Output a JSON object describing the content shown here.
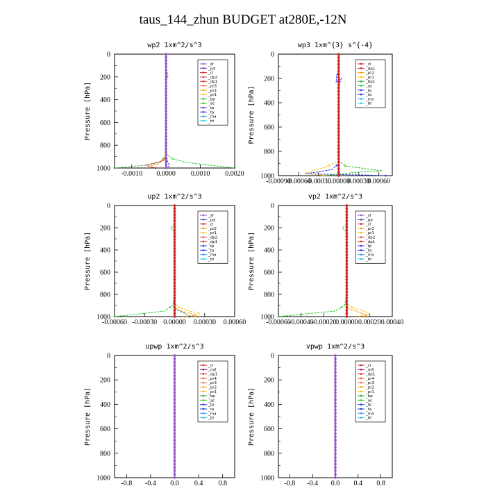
{
  "title": "taus_144_zhun  BUDGET at280E,-12N",
  "chart_data": [
    {
      "type": "line",
      "title": "wp2  1xm^2/s^3",
      "ylabel": "Pressure [hPa]",
      "ylim": [
        1000,
        0
      ],
      "yticks": [
        "0",
        "200",
        "400",
        "600",
        "800",
        "1000"
      ],
      "xlim": [
        -0.0015,
        0.002
      ],
      "xticks": [
        -0.001,
        0.0,
        0.001,
        0.002
      ],
      "xticklabels": [
        "-0.0010",
        "0.0000",
        "0.0010",
        "0.0020"
      ],
      "legend": [
        "_sf",
        "_pd",
        "_cl",
        "_dp2",
        "_dp1",
        "_pr3",
        "_pr2",
        "_pr1",
        "_bp",
        "_ac",
        "_tp",
        "_ta",
        "_ma",
        "_bt"
      ],
      "legend_position": "top-right",
      "series": [
        {
          "name": "_ac",
          "color": "#22cc22",
          "x": [
            0.0,
            0.0,
            6e-05,
            0.0,
            0.0,
            0.0,
            0.0,
            2e-05,
            0.0002,
            0.0006,
            0.0011,
            0.0016,
            0.002
          ],
          "y": [
            0,
            150,
            190,
            230,
            400,
            600,
            800,
            880,
            920,
            950,
            970,
            985,
            1000
          ]
        },
        {
          "name": "_bp",
          "color": "#33bb33",
          "x": [
            0.0,
            0.0,
            3e-05,
            0.0,
            0.0,
            -2e-05,
            -0.0002,
            -0.0006,
            -0.0011,
            -0.0015
          ],
          "y": [
            0,
            150,
            200,
            240,
            600,
            900,
            950,
            975,
            990,
            1000
          ]
        },
        {
          "name": "_pr1",
          "color": "#ff9900",
          "x": [
            0.0,
            0.0,
            -0.0002,
            -0.0005,
            -0.0003
          ],
          "y": [
            0,
            900,
            960,
            985,
            1000
          ]
        },
        {
          "name": "_dp1",
          "color": "#cc2222",
          "x": [
            0.0,
            0.0,
            0.0,
            -4e-05,
            -0.0003,
            -0.0006,
            -0.0003
          ],
          "y": [
            0,
            600,
            880,
            930,
            955,
            975,
            1000
          ]
        },
        {
          "name": "_tp",
          "color": "#3333ee",
          "x": [
            0.0,
            0.0,
            5e-05,
            0.0001,
            0.0
          ],
          "y": [
            0,
            900,
            950,
            980,
            1000
          ]
        },
        {
          "name": "_sf",
          "color": "#9955cc",
          "x": [
            0.0,
            0.0
          ],
          "y": [
            0,
            1000
          ]
        }
      ]
    },
    {
      "type": "line",
      "title": "wp3  1xm^{3} s^{-4}",
      "ylabel": "Pressure [hPa]",
      "ylim": [
        1000,
        0
      ],
      "yticks": [
        "0",
        "200",
        "400",
        "600",
        "800",
        "1000"
      ],
      "xlim": [
        -0.0009,
        0.0008
      ],
      "xticks": [
        -0.0009,
        -0.0006,
        -0.0003,
        0.0,
        0.0003,
        0.0006
      ],
      "xticklabels": [
        "-0.00090",
        "-0.00060",
        "-0.00030",
        "0.00000",
        "0.00030",
        "0.00060"
      ],
      "legend": [
        "_cl",
        "_dp1",
        "_pr2",
        "_pr1",
        "_bp1",
        "_ac",
        "_tp",
        "_ta",
        "_ma",
        "_bt"
      ],
      "legend_position": "top-right",
      "series": [
        {
          "name": "_ta",
          "color": "#2233dd",
          "x": [
            0.0,
            0.0,
            -3e-05,
            -4e-05,
            4e-05,
            0.0,
            0.0,
            -0.0001,
            -0.0005,
            0.0004,
            0.0007
          ],
          "y": [
            0,
            140,
            180,
            230,
            200,
            260,
            900,
            950,
            985,
            995,
            1000
          ]
        },
        {
          "name": "_ac",
          "color": "#22bb22",
          "x": [
            0.0,
            0.0,
            0.0001,
            0.0005,
            0.00065,
            0.0002,
            -0.0002
          ],
          "y": [
            0,
            880,
            920,
            950,
            960,
            975,
            1000
          ]
        },
        {
          "name": "_pr2",
          "color": "#ffbb00",
          "x": [
            0.0,
            0.0,
            -0.0002,
            -0.0004,
            -0.0005,
            -0.0002
          ],
          "y": [
            0,
            880,
            930,
            960,
            980,
            1000
          ]
        },
        {
          "name": "_dp1",
          "color": "#cc2222",
          "x": [
            0.0,
            0.0
          ],
          "y": [
            0,
            1000
          ]
        }
      ]
    },
    {
      "type": "line",
      "title": "up2  1xm^2/s^3",
      "ylabel": "Pressure [hPa]",
      "ylim": [
        1000,
        0
      ],
      "yticks": [
        "0",
        "200",
        "400",
        "600",
        "800",
        "1000"
      ],
      "xlim": [
        -0.0006,
        0.0006
      ],
      "xticks": [
        -0.0006,
        -0.0003,
        0.0,
        0.0003,
        0.0006
      ],
      "xticklabels": [
        "-0.00060",
        "-0.00030",
        "0.00000",
        "0.00030",
        "0.00060"
      ],
      "legend": [
        "_sf",
        "_pd",
        "_cl",
        "_pr2",
        "_pr1",
        "_dp2",
        "_dp1",
        "_tp",
        "_ta",
        "_ma",
        "_bt"
      ],
      "legend_position": "top-right",
      "series": [
        {
          "name": "_dp1",
          "color": "#22cc22",
          "x": [
            0.0,
            0.0,
            -4e-05,
            0.0,
            0.0,
            -2e-05,
            -0.0001,
            -0.0004,
            -0.0006
          ],
          "y": [
            0,
            170,
            200,
            240,
            820,
            900,
            950,
            980,
            1000
          ]
        },
        {
          "name": "_pr1",
          "color": "#ffbb00",
          "x": [
            0.0,
            0.0,
            5e-05,
            0.00015,
            0.00025,
            0.0002
          ],
          "y": [
            0,
            880,
            920,
            950,
            970,
            1000
          ]
        },
        {
          "name": "_pr2",
          "color": "#ff8800",
          "x": [
            0.0,
            0.0,
            0.0001,
            0.00022,
            0.0001
          ],
          "y": [
            0,
            920,
            960,
            985,
            1000
          ]
        },
        {
          "name": "_dp2",
          "color": "#008866",
          "x": [
            0.0,
            0.0,
            0.0001,
            0.00015
          ],
          "y": [
            0,
            930,
            970,
            1000
          ]
        },
        {
          "name": "_cl",
          "color": "#cc2222",
          "x": [
            0.0,
            0.0
          ],
          "y": [
            0,
            1000
          ]
        }
      ]
    },
    {
      "type": "line",
      "title": "vp2  1xm^2/s^3",
      "ylabel": "Pressure [hPa]",
      "ylim": [
        1000,
        0
      ],
      "yticks": [
        "0",
        "200",
        "400",
        "600",
        "800",
        "1000"
      ],
      "xlim": [
        -0.0006,
        0.0004
      ],
      "xticks": [
        -0.0006,
        -0.0004,
        -0.0002,
        0.0,
        0.0002,
        0.0004
      ],
      "xticklabels": [
        "-0.00060",
        "-0.00040",
        "-0.00020",
        "0.00000",
        "0.00020",
        "0.00040"
      ],
      "legend": [
        "_sf",
        "_pd",
        "_cl",
        "_pr2",
        "_pr1",
        "_dp2",
        "_dp1",
        "_tp",
        "_ta",
        "_ma",
        "_bt"
      ],
      "legend_position": "top-right",
      "series": [
        {
          "name": "_dp1",
          "color": "#22cc22",
          "x": [
            0.0,
            0.0,
            -4e-05,
            0.0,
            0.0,
            -2e-05,
            -0.0001,
            -0.0004,
            -0.0006
          ],
          "y": [
            0,
            170,
            200,
            240,
            820,
            900,
            950,
            980,
            1000
          ]
        },
        {
          "name": "_pr1",
          "color": "#ffbb00",
          "x": [
            0.0,
            0.0,
            5e-05,
            0.00015,
            0.0002,
            0.00015
          ],
          "y": [
            0,
            880,
            920,
            950,
            970,
            1000
          ]
        },
        {
          "name": "_pr2",
          "color": "#ff8800",
          "x": [
            0.0,
            0.0,
            0.0001,
            0.00018,
            0.0001
          ],
          "y": [
            0,
            920,
            960,
            985,
            1000
          ]
        },
        {
          "name": "_cl",
          "color": "#cc2222",
          "x": [
            0.0,
            0.0
          ],
          "y": [
            0,
            1000
          ]
        }
      ]
    },
    {
      "type": "line",
      "title": "upwp  1xm^2/s^3",
      "ylabel": "Pressure [hPa]",
      "ylim": [
        1000,
        0
      ],
      "yticks": [
        "0",
        "200",
        "400",
        "600",
        "800",
        "1000"
      ],
      "xlim": [
        -1.0,
        1.0
      ],
      "xticks": [
        -0.8,
        -0.4,
        0.0,
        0.4,
        0.8
      ],
      "xticklabels": [
        "-0.8",
        "-0.4",
        "0.0",
        "0.4",
        "0.8"
      ],
      "legend": [
        "_cl",
        "_mfl",
        "_dp1",
        "_pr4",
        "_pr3",
        "_pr2",
        "_pr1",
        "_bp",
        "_ac",
        "_tp",
        "_ta",
        "_ma",
        "_bt"
      ],
      "legend_position": "top-right",
      "series": [
        {
          "name": "_cl",
          "color": "#9955cc",
          "x": [
            0.0,
            0.0
          ],
          "y": [
            0,
            1000
          ]
        }
      ]
    },
    {
      "type": "line",
      "title": "vpwp  1xm^2/s^3",
      "ylabel": "Pressure [hPa]",
      "ylim": [
        1000,
        0
      ],
      "yticks": [
        "0",
        "200",
        "400",
        "600",
        "800",
        "1000"
      ],
      "xlim": [
        -1.0,
        1.0
      ],
      "xticks": [
        -0.8,
        -0.4,
        0.0,
        0.4,
        0.8
      ],
      "xticklabels": [
        "-0.8",
        "-0.4",
        "0.0",
        "0.4",
        "0.8"
      ],
      "legend": [
        "_cl",
        "_mfl",
        "_dp1",
        "_pr4",
        "_pr3",
        "_pr2",
        "_pr1",
        "_bp",
        "_ac",
        "_tp",
        "_ta",
        "_ma",
        "_bt"
      ],
      "legend_position": "top-right",
      "series": [
        {
          "name": "_cl",
          "color": "#9955cc",
          "x": [
            0.0,
            0.0
          ],
          "y": [
            0,
            1000
          ]
        }
      ]
    }
  ],
  "legend_colors": {
    "_sf": "#9955cc",
    "_pd": "#6633aa",
    "_cl": "#cc2222",
    "_mfl": "#aa1166",
    "_dp2": "#cc4444",
    "_dp1": "#dd2222",
    "_pr4": "#ee5533",
    "_pr3": "#ff6633",
    "_pr2": "#ff9900",
    "_pr1": "#ffbb00",
    "_bp": "#22aa22",
    "_bp1": "#22aa22",
    "_ac": "#22cc22",
    "_tp": "#3333ee",
    "_ta": "#2233dd",
    "_ma": "#3399ff",
    "_bt": "#22ccee"
  }
}
